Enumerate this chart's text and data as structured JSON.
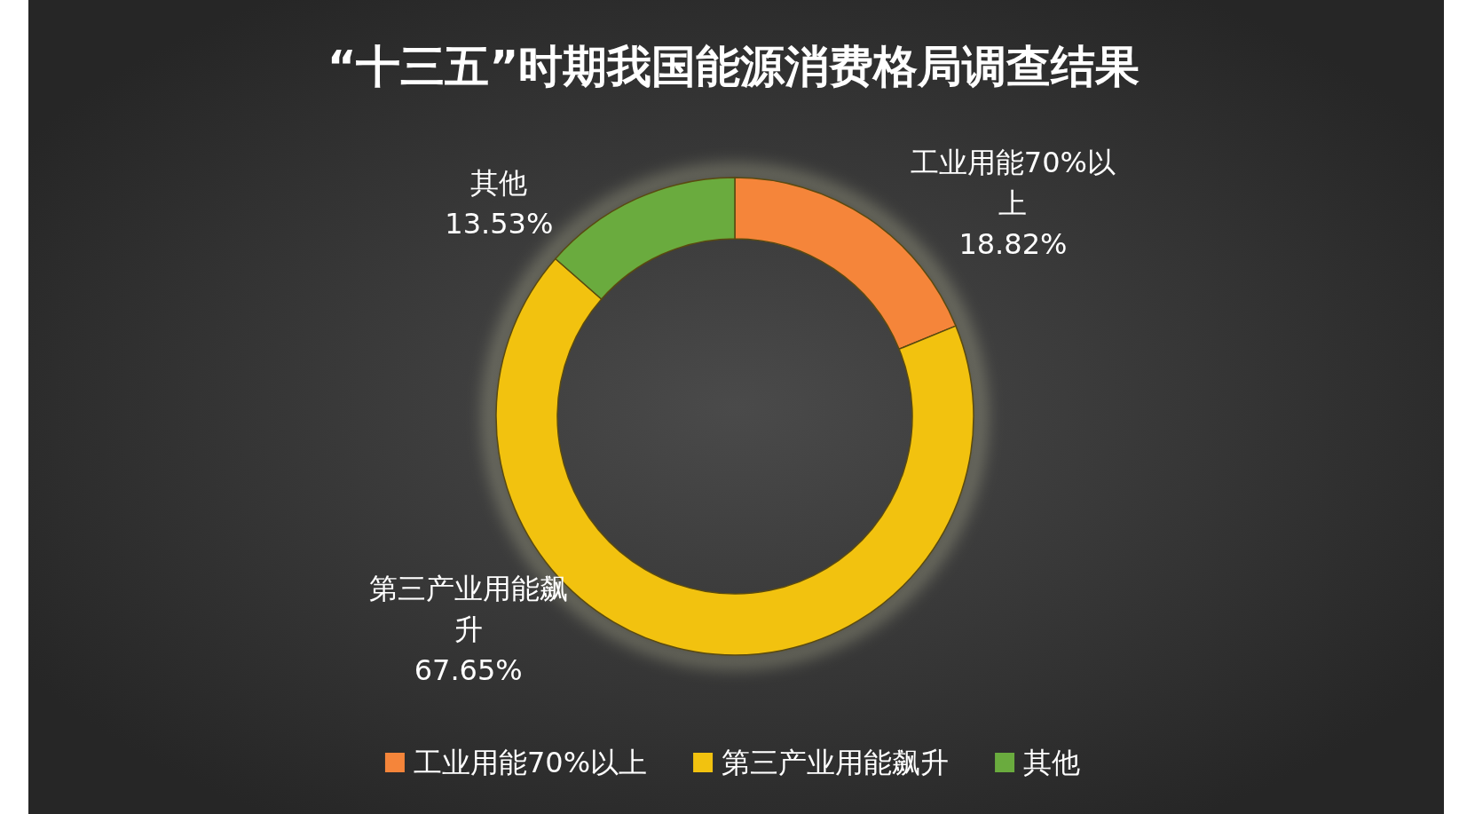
{
  "chart_data": {
    "type": "donut",
    "title": "“十三五”时期我国能源消费格局调查结果",
    "categories": [
      "工业用能70%以上",
      "第三产业用能飙升",
      "其他"
    ],
    "values": [
      18.82,
      67.65,
      13.53
    ],
    "colors": [
      "#f5853a",
      "#f2c20f",
      "#6aab3e"
    ],
    "value_labels": [
      "18.82%",
      "67.65%",
      "13.53%"
    ],
    "legend": "bottom"
  }
}
